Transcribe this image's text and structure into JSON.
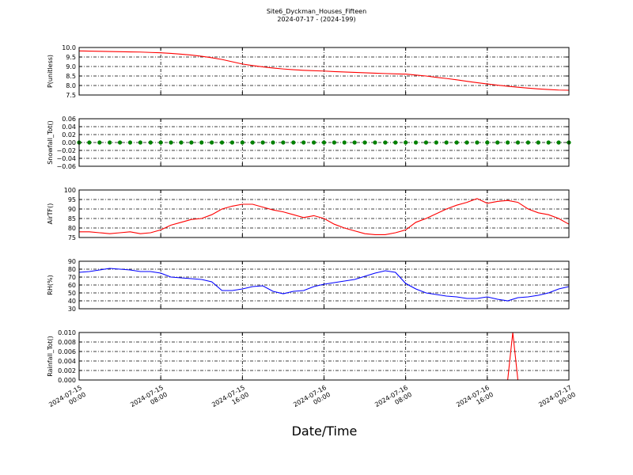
{
  "title": "Site6_Dyckman_Houses_Fifteen",
  "subtitle": "2024-07-17 - (2024-199)",
  "xlabel": "Date/Time",
  "xlim": [
    "2024-07-15 00:00",
    "2024-07-17 00:00"
  ],
  "xticks": [
    {
      "value": "2024-07-15 00:00",
      "label": "2024-07-15\n00:00"
    },
    {
      "value": "2024-07-15 08:00",
      "label": "2024-07-15\n08:00"
    },
    {
      "value": "2024-07-15 16:00",
      "label": "2024-07-15\n16:00"
    },
    {
      "value": "2024-07-16 00:00",
      "label": "2024-07-16\n00:00"
    },
    {
      "value": "2024-07-16 08:00",
      "label": "2024-07-16\n08:00"
    },
    {
      "value": "2024-07-16 16:00",
      "label": "2024-07-16\n16:00"
    },
    {
      "value": "2024-07-17 00:00",
      "label": "2024-07-17\n00:00"
    }
  ],
  "x": [
    "2024-07-15 00:00",
    "2024-07-15 01:00",
    "2024-07-15 02:00",
    "2024-07-15 03:00",
    "2024-07-15 04:00",
    "2024-07-15 05:00",
    "2024-07-15 06:00",
    "2024-07-15 07:00",
    "2024-07-15 08:00",
    "2024-07-15 09:00",
    "2024-07-15 10:00",
    "2024-07-15 11:00",
    "2024-07-15 12:00",
    "2024-07-15 13:00",
    "2024-07-15 14:00",
    "2024-07-15 15:00",
    "2024-07-15 16:00",
    "2024-07-15 17:00",
    "2024-07-15 18:00",
    "2024-07-15 19:00",
    "2024-07-15 20:00",
    "2024-07-15 21:00",
    "2024-07-15 22:00",
    "2024-07-15 23:00",
    "2024-07-16 00:00",
    "2024-07-16 01:00",
    "2024-07-16 02:00",
    "2024-07-16 03:00",
    "2024-07-16 04:00",
    "2024-07-16 05:00",
    "2024-07-16 06:00",
    "2024-07-16 07:00",
    "2024-07-16 08:00",
    "2024-07-16 09:00",
    "2024-07-16 10:00",
    "2024-07-16 11:00",
    "2024-07-16 12:00",
    "2024-07-16 13:00",
    "2024-07-16 14:00",
    "2024-07-16 15:00",
    "2024-07-16 16:00",
    "2024-07-16 17:00",
    "2024-07-16 18:00",
    "2024-07-16 19:00",
    "2024-07-16 20:00",
    "2024-07-16 21:00",
    "2024-07-16 22:00",
    "2024-07-16 23:00",
    "2024-07-17 00:00"
  ],
  "chart_data": [
    {
      "type": "line",
      "ylabel": "P(unitless)",
      "ylim": [
        7.5,
        10.0
      ],
      "grid": true,
      "yticks": [
        7.5,
        {
          "value": 8,
          "label": "8.0"
        },
        8.5,
        {
          "value": 9,
          "label": "9.0"
        },
        9.5,
        {
          "value": 10,
          "label": "10.0"
        }
      ],
      "series": [
        {
          "color": "#ff0000",
          "values": [
            9.82,
            9.81,
            9.8,
            9.79,
            9.78,
            9.77,
            9.76,
            9.74,
            9.72,
            9.69,
            9.65,
            9.6,
            9.54,
            9.46,
            9.37,
            9.25,
            9.13,
            9.05,
            8.98,
            8.92,
            8.87,
            8.83,
            8.8,
            8.78,
            8.76,
            8.73,
            8.71,
            8.69,
            8.67,
            8.65,
            8.63,
            8.61,
            8.6,
            8.55,
            8.5,
            8.43,
            8.37,
            8.3,
            8.22,
            8.15,
            8.08,
            8.02,
            7.96,
            7.91,
            7.86,
            7.82,
            7.79,
            7.76,
            7.75
          ]
        }
      ]
    },
    {
      "type": "scatter",
      "ylabel": "Snowfall_Tot()",
      "ylim": [
        -0.06,
        0.06
      ],
      "grid": true,
      "yticks": [
        {
          "value": -0.06,
          "label": "−0.06"
        },
        {
          "value": -0.04,
          "label": "−0.04"
        },
        {
          "value": -0.02,
          "label": "−0.02"
        },
        {
          "value": 0,
          "label": "0.00"
        },
        0.02,
        0.04,
        0.06
      ],
      "series": [
        {
          "color": "#008000",
          "values": [
            0,
            0,
            0,
            0,
            0,
            0,
            0,
            0,
            0,
            0,
            0,
            0,
            0,
            0,
            0,
            0,
            0,
            0,
            0,
            0,
            0,
            0,
            0,
            0,
            0,
            0,
            0,
            0,
            0,
            0,
            0,
            0,
            0,
            0,
            0,
            0,
            0,
            0,
            0,
            0,
            0,
            0,
            0,
            0,
            0,
            0,
            0,
            0,
            0
          ]
        }
      ]
    },
    {
      "type": "line",
      "ylabel": "AirTF()",
      "ylim": [
        75,
        100
      ],
      "grid": true,
      "yticks": [
        75,
        80,
        85,
        90,
        95,
        100
      ],
      "series": [
        {
          "color": "#ff0000",
          "values": [
            78,
            78,
            77.5,
            77,
            77.5,
            78,
            77,
            77.5,
            79,
            81.5,
            83,
            84.5,
            85,
            87,
            90,
            91.5,
            92.5,
            92.5,
            91,
            89.5,
            88.5,
            87,
            85.5,
            86.5,
            85,
            82,
            80,
            78.5,
            77,
            76.5,
            76.5,
            77.5,
            79,
            83,
            85,
            87.5,
            90,
            92,
            93.5,
            95.5,
            93,
            94,
            94.5,
            93.5,
            90,
            88,
            87,
            85,
            82
          ]
        }
      ]
    },
    {
      "type": "line",
      "ylabel": "RH(%)",
      "ylim": [
        30,
        90
      ],
      "grid": true,
      "yticks": [
        30,
        40,
        50,
        60,
        70,
        80,
        90
      ],
      "series": [
        {
          "color": "#0000ff",
          "values": [
            76,
            77,
            79,
            81,
            80,
            79,
            77,
            77,
            75,
            70,
            69,
            68,
            67,
            64,
            53,
            53,
            55,
            58,
            59,
            52,
            49,
            52,
            53,
            58,
            61,
            63,
            65,
            67,
            71,
            75,
            78,
            76,
            62,
            55,
            50,
            48,
            46,
            45,
            43,
            43,
            45,
            42,
            40,
            44,
            45,
            47,
            50,
            55,
            58
          ]
        }
      ]
    },
    {
      "type": "line",
      "ylabel": "Rainfall_Tot()",
      "ylim": [
        0,
        0.01
      ],
      "grid": true,
      "yticks": [
        {
          "value": 0,
          "label": "0.000"
        },
        0.002,
        0.004,
        0.006,
        0.008,
        {
          "value": 0.01,
          "label": "0.010"
        }
      ],
      "x": [
        "2024-07-15 00:00",
        "2024-07-16 18:00",
        "2024-07-16 18:30",
        "2024-07-16 19:00",
        "2024-07-17 00:00"
      ],
      "series": [
        {
          "color": "#ff0000",
          "values": [
            0,
            0,
            0.01,
            0,
            0
          ]
        }
      ]
    }
  ]
}
